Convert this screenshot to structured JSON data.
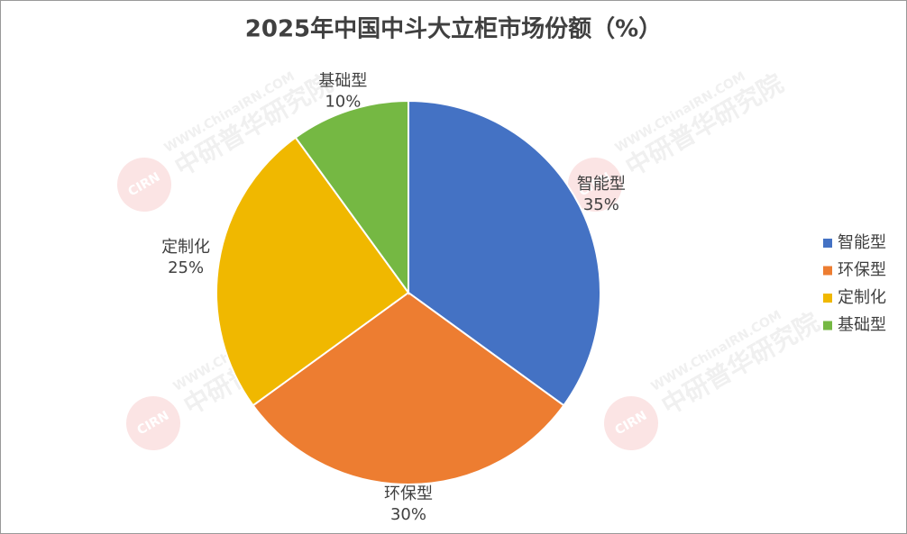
{
  "chart_data": {
    "type": "pie",
    "title": "2025年中国中斗大立柜市场份额（%）",
    "categories": [
      "智能型",
      "环保型",
      "定制化",
      "基础型"
    ],
    "values": [
      35,
      30,
      25,
      10
    ],
    "value_labels": [
      "35%",
      "30%",
      "25%",
      "10%"
    ],
    "colors": [
      "#4472c4",
      "#ed7d31",
      "#f0b800",
      "#75b843"
    ],
    "legend": "right"
  },
  "watermark": {
    "logo": "CIRN",
    "site": "WWW.ChinaIRN.COM",
    "name": "中研普华研究院"
  }
}
